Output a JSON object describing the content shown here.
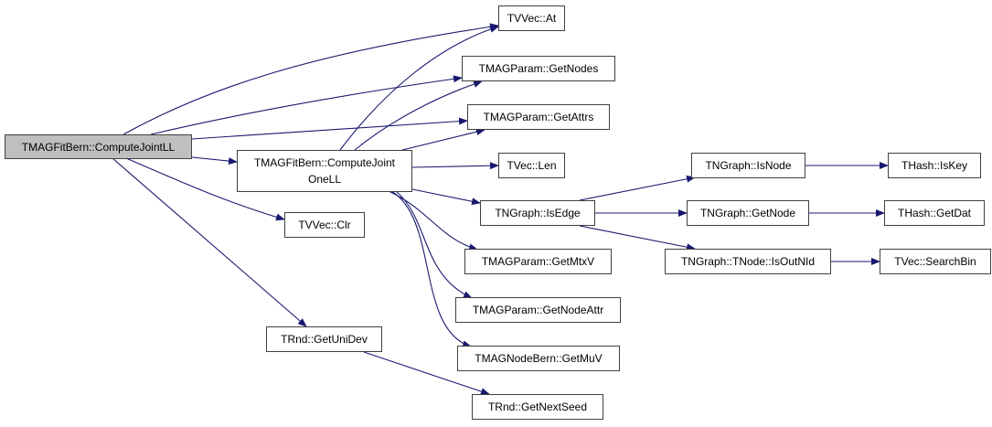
{
  "colors": {
    "edge": "#191970",
    "root_fill": "#bfbfbf",
    "node_border": "#404040"
  },
  "nodes": {
    "compute_joint_ll": "TMAGFitBern::ComputeJointLL",
    "compute_joint_one_ll": "TMAGFitBern::ComputeJoint\nOneLL",
    "tvvec_at": "TVVec::At",
    "get_nodes": "TMAGParam::GetNodes",
    "get_attrs": "TMAGParam::GetAttrs",
    "tvec_len": "TVec::Len",
    "is_edge": "TNGraph::IsEdge",
    "get_mtxv": "TMAGParam::GetMtxV",
    "get_node_attr": "TMAGParam::GetNodeAttr",
    "get_muv": "TMAGNodeBern::GetMuV",
    "get_next_seed": "TRnd::GetNextSeed",
    "tvvec_clr": "TVVec::Clr",
    "get_uni_dev": "TRnd::GetUniDev",
    "is_node": "TNGraph::IsNode",
    "get_node": "TNGraph::GetNode",
    "is_out_nid": "TNGraph::TNode::IsOutNId",
    "is_key": "THash::IsKey",
    "get_dat": "THash::GetDat",
    "search_bin": "TVec::SearchBin"
  },
  "edges": [
    [
      "compute_joint_ll",
      "tvvec_at"
    ],
    [
      "compute_joint_ll",
      "get_nodes"
    ],
    [
      "compute_joint_ll",
      "get_attrs"
    ],
    [
      "compute_joint_ll",
      "compute_joint_one_ll"
    ],
    [
      "compute_joint_ll",
      "tvvec_clr"
    ],
    [
      "compute_joint_ll",
      "get_uni_dev"
    ],
    [
      "compute_joint_one_ll",
      "tvvec_at"
    ],
    [
      "compute_joint_one_ll",
      "get_nodes"
    ],
    [
      "compute_joint_one_ll",
      "get_attrs"
    ],
    [
      "compute_joint_one_ll",
      "tvec_len"
    ],
    [
      "compute_joint_one_ll",
      "is_edge"
    ],
    [
      "compute_joint_one_ll",
      "get_mtxv"
    ],
    [
      "compute_joint_one_ll",
      "get_node_attr"
    ],
    [
      "compute_joint_one_ll",
      "get_muv"
    ],
    [
      "get_uni_dev",
      "get_next_seed"
    ],
    [
      "is_edge",
      "is_node"
    ],
    [
      "is_edge",
      "get_node"
    ],
    [
      "is_edge",
      "is_out_nid"
    ],
    [
      "is_node",
      "is_key"
    ],
    [
      "get_node",
      "get_dat"
    ],
    [
      "is_out_nid",
      "search_bin"
    ]
  ]
}
